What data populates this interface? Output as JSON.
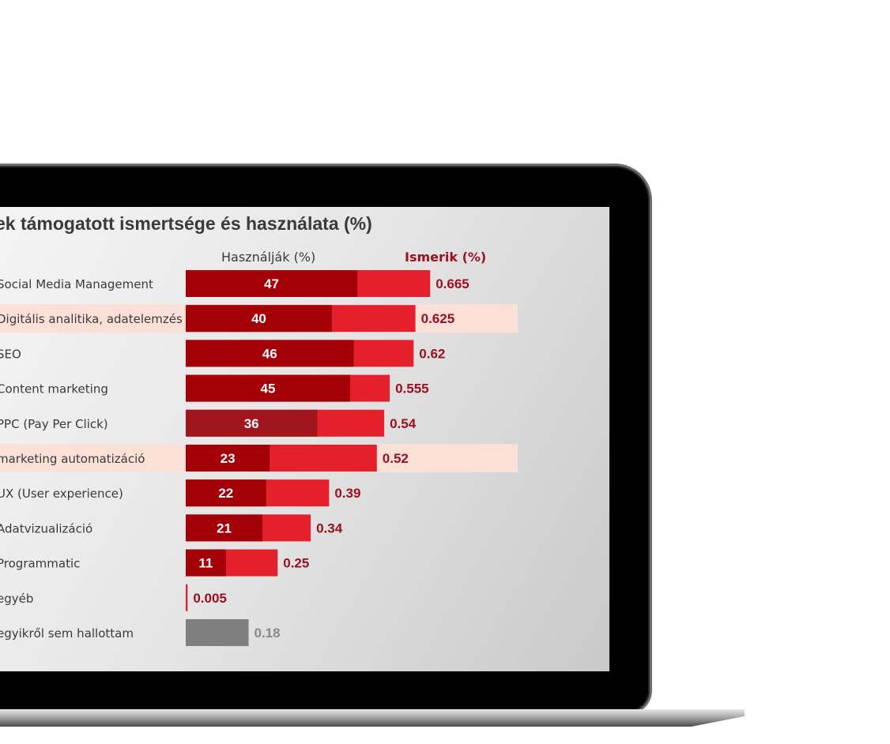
{
  "chart_data": {
    "type": "bar",
    "title": "ek támogatott ismertsége és használata (%)",
    "header_used": "Használják (%)",
    "header_known": "Ismerik (%)",
    "categories": [
      "Social Media Management",
      "Digitális analitika, adatelemzés",
      "SEO",
      "Content marketing",
      "PPC (Pay Per Click)",
      "marketing automatizáció",
      "UX (User experience)",
      "Adatvizualizáció",
      "Programmatic",
      "egyéb",
      "egyikről sem hallottam"
    ],
    "series": [
      {
        "name": "Használják (%)",
        "values": [
          47,
          40,
          46,
          45,
          36,
          23,
          22,
          21,
          11,
          null,
          null
        ],
        "labels": [
          "47",
          "40",
          "46",
          "45",
          "36",
          "23",
          "22",
          "21",
          "11",
          "",
          ""
        ]
      },
      {
        "name": "Ismerik (%)",
        "values": [
          0.665,
          0.625,
          0.62,
          0.555,
          0.54,
          0.52,
          0.39,
          0.34,
          0.25,
          0.005,
          0.18
        ],
        "labels": [
          "0.665",
          "0.625",
          "0.62",
          "0.555",
          "0.54",
          "0.52",
          "0.39",
          "0.34",
          "0.25",
          "0.005",
          "0.18"
        ]
      }
    ],
    "highlighted_rows": [
      1,
      5
    ],
    "colors": {
      "used": "#a30008",
      "used_alt": "#a0141c",
      "known": "#e3202b",
      "none": "#7f7f7f",
      "highlight": "#fbe0d8",
      "label_red": "#9a1020",
      "label_gray": "#8a8a8a"
    }
  }
}
